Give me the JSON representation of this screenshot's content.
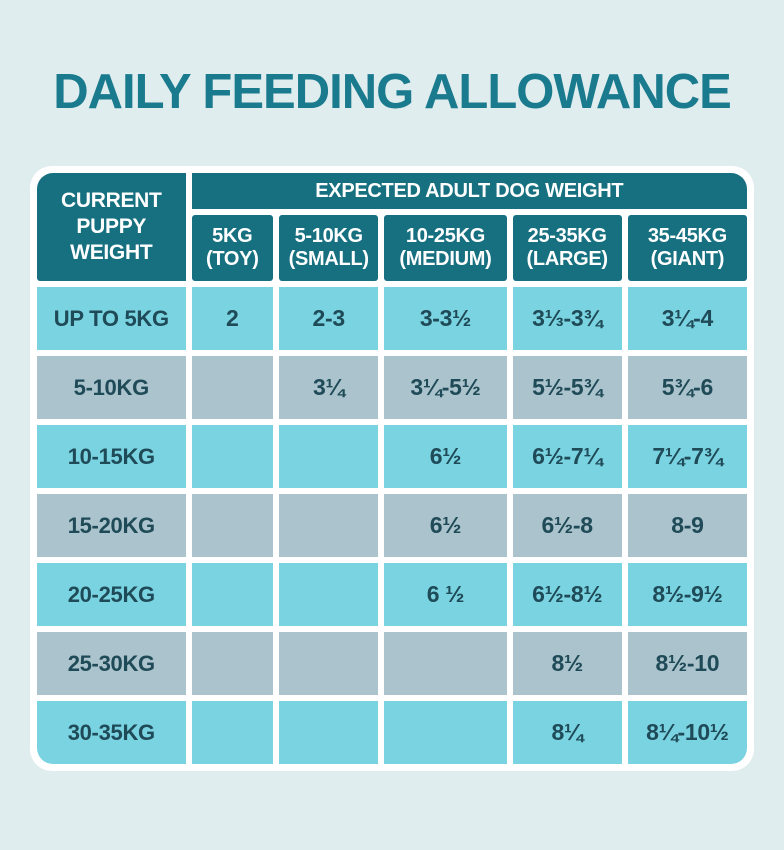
{
  "title": "DAILY FEEDING ALLOWANCE",
  "colors": {
    "bg": "#e0edee",
    "teal": "#177080",
    "cyan": "#7ad3e1",
    "gray": "#aac3cc",
    "ink": "#1f4a57",
    "title": "#1b7b8e",
    "white": "#ffffff"
  },
  "table": {
    "corner_header": "CURRENT PUPPY WEIGHT",
    "group_header": "EXPECTED ADULT DOG WEIGHT",
    "columns": [
      {
        "label": "5KG",
        "sub": "(TOY)"
      },
      {
        "label": "5-10KG",
        "sub": "(SMALL)"
      },
      {
        "label": "10-25KG",
        "sub": "(MEDIUM)"
      },
      {
        "label": "25-35KG",
        "sub": "(LARGE)"
      },
      {
        "label": "35-45KG",
        "sub": "(GIANT)"
      }
    ],
    "rows": [
      {
        "label": "UP TO 5KG",
        "values": [
          "2",
          "2-3",
          "3-3½",
          "3⅓-3¾",
          "3¼-4"
        ]
      },
      {
        "label": "5-10KG",
        "values": [
          "",
          "3¼",
          "3¼-5½",
          "5½-5¾",
          "5¾-6"
        ]
      },
      {
        "label": "10-15KG",
        "values": [
          "",
          "",
          "6½",
          "6½-7¼",
          "7¼-7¾"
        ]
      },
      {
        "label": "15-20KG",
        "values": [
          "",
          "",
          "6½",
          "6½-8",
          "8-9"
        ]
      },
      {
        "label": "20-25KG",
        "values": [
          "",
          "",
          "6 ½",
          "6½-8½",
          "8½-9½"
        ]
      },
      {
        "label": "25-30KG",
        "values": [
          "",
          "",
          "",
          "8½",
          "8½-10"
        ]
      },
      {
        "label": "30-35KG",
        "values": [
          "",
          "",
          "",
          "8¼",
          "8¼-10½"
        ]
      }
    ]
  },
  "chart_data": {
    "type": "table",
    "title": "DAILY FEEDING ALLOWANCE",
    "row_header": "CURRENT PUPPY WEIGHT",
    "column_group": "EXPECTED ADULT DOG WEIGHT",
    "columns": [
      "5KG (TOY)",
      "5-10KG (SMALL)",
      "10-25KG (MEDIUM)",
      "25-35KG (LARGE)",
      "35-45KG (GIANT)"
    ],
    "rows": [
      "UP TO 5KG",
      "5-10KG",
      "10-15KG",
      "15-20KG",
      "20-25KG",
      "25-30KG",
      "30-35KG"
    ],
    "values": [
      [
        "2",
        "2-3",
        "3-3½",
        "3⅓-3¾",
        "3¼-4"
      ],
      [
        "",
        "3¼",
        "3¼-5½",
        "5½-5¾",
        "5¾-6"
      ],
      [
        "",
        "",
        "6½",
        "6½-7¼",
        "7¼-7¾"
      ],
      [
        "",
        "",
        "6½",
        "6½-8",
        "8-9"
      ],
      [
        "",
        "",
        "6 ½",
        "6½-8½",
        "8½-9½"
      ],
      [
        "",
        "",
        "",
        "8½",
        "8½-10"
      ],
      [
        "",
        "",
        "",
        "8¼",
        "8¼-10½"
      ]
    ]
  }
}
